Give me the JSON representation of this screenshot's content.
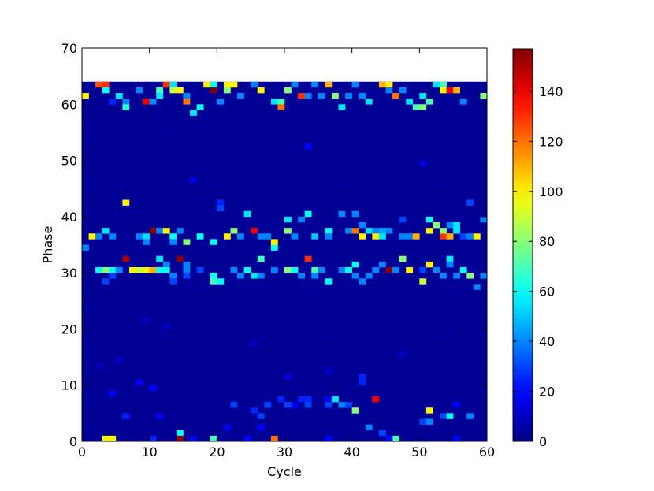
{
  "chart_data": {
    "type": "heatmap",
    "xlabel": "Cycle",
    "ylabel": "Phase",
    "xlim": [
      0,
      60
    ],
    "ylim": [
      0,
      70
    ],
    "grid": false,
    "x_bins": 60,
    "y_bins": 64,
    "colormap": "jet",
    "colorbar": {
      "min": 0,
      "max": 157,
      "ticks": [
        0,
        20,
        40,
        60,
        80,
        100,
        120,
        140
      ]
    },
    "xticks": [
      0,
      10,
      20,
      30,
      40,
      50,
      60
    ],
    "yticks": [
      0,
      10,
      20,
      30,
      40,
      50,
      60,
      70
    ],
    "background_value": 3,
    "cells": [
      [
        0,
        61,
        100
      ],
      [
        2,
        63,
        125
      ],
      [
        3,
        63,
        130
      ],
      [
        3,
        62,
        60
      ],
      [
        4,
        60,
        25
      ],
      [
        5,
        61,
        55
      ],
      [
        6,
        60,
        40
      ],
      [
        6,
        59,
        65
      ],
      [
        8,
        62,
        40
      ],
      [
        9,
        60,
        140
      ],
      [
        10,
        60,
        40
      ],
      [
        11,
        62,
        70
      ],
      [
        11,
        61,
        55
      ],
      [
        12,
        63,
        130
      ],
      [
        13,
        63,
        55
      ],
      [
        13,
        62,
        90
      ],
      [
        14,
        62,
        100
      ],
      [
        15,
        61,
        40
      ],
      [
        15,
        60,
        120
      ],
      [
        16,
        58,
        55
      ],
      [
        17,
        59,
        60
      ],
      [
        18,
        63,
        100
      ],
      [
        19,
        63,
        60
      ],
      [
        19,
        62,
        157
      ],
      [
        20,
        60,
        40
      ],
      [
        21,
        63,
        100
      ],
      [
        21,
        62,
        80
      ],
      [
        22,
        63,
        100
      ],
      [
        23,
        61,
        40
      ],
      [
        25,
        63,
        40
      ],
      [
        26,
        62,
        100
      ],
      [
        28,
        60,
        55
      ],
      [
        29,
        60,
        70
      ],
      [
        29,
        59,
        120
      ],
      [
        30,
        62,
        80
      ],
      [
        31,
        63,
        40
      ],
      [
        32,
        61,
        130
      ],
      [
        33,
        61,
        40
      ],
      [
        34,
        63,
        40
      ],
      [
        35,
        61,
        40
      ],
      [
        36,
        63,
        110
      ],
      [
        37,
        61,
        80
      ],
      [
        38,
        59,
        55
      ],
      [
        39,
        61,
        40
      ],
      [
        40,
        63,
        40
      ],
      [
        41,
        61,
        40
      ],
      [
        42,
        60,
        55
      ],
      [
        44,
        63,
        110
      ],
      [
        45,
        63,
        100
      ],
      [
        45,
        62,
        40
      ],
      [
        46,
        61,
        120
      ],
      [
        47,
        62,
        40
      ],
      [
        48,
        60,
        55
      ],
      [
        49,
        59,
        70
      ],
      [
        50,
        59,
        80
      ],
      [
        50,
        61,
        55
      ],
      [
        51,
        60,
        70
      ],
      [
        52,
        63,
        55
      ],
      [
        53,
        63,
        70
      ],
      [
        53,
        62,
        100
      ],
      [
        54,
        62,
        140
      ],
      [
        55,
        62,
        110
      ],
      [
        56,
        60,
        40
      ],
      [
        59,
        61,
        80
      ],
      [
        6,
        42,
        100
      ],
      [
        20,
        42,
        25
      ],
      [
        20,
        41,
        30
      ],
      [
        27,
        36,
        40
      ],
      [
        28,
        34,
        60
      ],
      [
        30,
        39,
        55
      ],
      [
        32,
        39,
        40
      ],
      [
        33,
        40,
        60
      ],
      [
        28,
        35,
        100
      ],
      [
        30,
        37,
        80
      ],
      [
        31,
        36,
        40
      ],
      [
        34,
        36,
        50
      ],
      [
        36,
        37,
        60
      ],
      [
        36,
        36,
        40
      ],
      [
        38,
        40,
        40
      ],
      [
        39,
        37,
        40
      ],
      [
        40,
        37,
        120
      ],
      [
        41,
        36,
        100
      ],
      [
        42,
        37,
        55
      ],
      [
        41,
        38,
        40
      ],
      [
        40,
        40,
        40
      ],
      [
        43,
        37,
        40
      ],
      [
        43,
        36,
        100
      ],
      [
        44,
        37,
        45
      ],
      [
        44,
        36,
        55
      ],
      [
        45,
        37,
        40
      ],
      [
        47,
        36,
        40
      ],
      [
        48,
        36,
        40
      ],
      [
        49,
        36,
        110
      ],
      [
        51,
        37,
        100
      ],
      [
        51,
        39,
        60
      ],
      [
        52,
        38,
        80
      ],
      [
        53,
        36,
        130
      ],
      [
        53,
        37,
        80
      ],
      [
        54,
        36,
        110
      ],
      [
        54,
        38,
        40
      ],
      [
        55,
        38,
        55
      ],
      [
        55,
        37,
        55
      ],
      [
        56,
        36,
        30
      ],
      [
        57,
        36,
        40
      ],
      [
        58,
        36,
        100
      ],
      [
        59,
        39,
        40
      ],
      [
        57,
        42,
        30
      ],
      [
        1,
        36,
        100
      ],
      [
        2,
        36,
        40
      ],
      [
        3,
        37,
        55
      ],
      [
        4,
        36,
        40
      ],
      [
        8,
        36,
        40
      ],
      [
        9,
        36,
        55
      ],
      [
        9,
        35,
        40
      ],
      [
        10,
        37,
        157
      ],
      [
        11,
        37,
        40
      ],
      [
        12,
        37,
        100
      ],
      [
        13,
        36,
        60
      ],
      [
        13,
        35,
        40
      ],
      [
        14,
        37,
        40
      ],
      [
        15,
        35,
        80
      ],
      [
        17,
        36,
        60
      ],
      [
        19,
        35,
        60
      ],
      [
        21,
        36,
        100
      ],
      [
        22,
        37,
        80
      ],
      [
        23,
        36,
        40
      ],
      [
        24,
        40,
        55
      ],
      [
        25,
        37,
        140
      ],
      [
        26,
        36,
        40
      ],
      [
        11,
        32,
        55
      ],
      [
        12,
        31,
        40
      ],
      [
        14,
        32,
        155
      ],
      [
        15,
        31,
        40
      ],
      [
        6,
        32,
        150
      ],
      [
        2,
        30,
        60
      ],
      [
        3,
        30,
        80
      ],
      [
        4,
        30,
        60
      ],
      [
        4,
        29,
        30
      ],
      [
        5,
        30,
        40
      ],
      [
        7,
        30,
        100
      ],
      [
        8,
        30,
        90
      ],
      [
        9,
        30,
        100
      ],
      [
        10,
        30,
        110
      ],
      [
        11,
        30,
        60
      ],
      [
        12,
        30,
        60
      ],
      [
        13,
        29,
        40
      ],
      [
        13,
        28,
        30
      ],
      [
        15,
        30,
        40
      ],
      [
        15,
        29,
        30
      ],
      [
        17,
        30,
        30
      ],
      [
        19,
        29,
        60
      ],
      [
        19,
        28,
        70
      ],
      [
        20,
        28,
        60
      ],
      [
        22,
        30,
        40
      ],
      [
        23,
        29,
        40
      ],
      [
        24,
        30,
        60
      ],
      [
        25,
        29,
        55
      ],
      [
        26,
        29,
        40
      ],
      [
        26,
        32,
        70
      ],
      [
        28,
        30,
        40
      ],
      [
        30,
        30,
        80
      ],
      [
        31,
        30,
        60
      ],
      [
        32,
        29,
        40
      ],
      [
        33,
        32,
        130
      ],
      [
        34,
        30,
        70
      ],
      [
        34,
        29,
        40
      ],
      [
        35,
        30,
        40
      ],
      [
        36,
        28,
        60
      ],
      [
        38,
        30,
        40
      ],
      [
        39,
        30,
        60
      ],
      [
        40,
        31,
        60
      ],
      [
        40,
        29,
        40
      ],
      [
        41,
        28,
        40
      ],
      [
        42,
        29,
        40
      ],
      [
        43,
        30,
        40
      ],
      [
        44,
        31,
        40
      ],
      [
        45,
        30,
        40
      ],
      [
        45,
        30,
        155
      ],
      [
        46,
        30,
        40
      ],
      [
        47,
        32,
        80
      ],
      [
        48,
        30,
        100
      ],
      [
        50,
        28,
        90
      ],
      [
        50,
        30,
        30
      ],
      [
        51,
        31,
        100
      ],
      [
        52,
        30,
        40
      ],
      [
        53,
        29,
        40
      ],
      [
        54,
        32,
        55
      ],
      [
        54,
        31,
        40
      ],
      [
        55,
        29,
        40
      ],
      [
        56,
        30,
        60
      ],
      [
        57,
        29,
        80
      ],
      [
        58,
        27,
        40
      ],
      [
        59,
        29,
        40
      ],
      [
        0,
        34,
        40
      ],
      [
        3,
        28,
        30
      ],
      [
        41,
        11,
        25
      ],
      [
        41,
        10,
        25
      ],
      [
        10,
        9,
        20
      ],
      [
        32,
        7,
        25
      ],
      [
        33,
        7,
        25
      ],
      [
        31,
        6,
        20
      ],
      [
        29,
        7,
        25
      ],
      [
        30,
        6,
        30
      ],
      [
        36,
        7,
        20
      ],
      [
        36,
        6,
        30
      ],
      [
        37,
        7,
        55
      ],
      [
        38,
        6,
        40
      ],
      [
        39,
        6,
        30
      ],
      [
        40,
        5,
        80
      ],
      [
        43,
        7,
        140
      ],
      [
        22,
        6,
        30
      ],
      [
        25,
        5,
        25
      ],
      [
        26,
        4,
        30
      ],
      [
        27,
        6,
        30
      ],
      [
        33,
        6,
        30
      ],
      [
        6,
        4,
        25
      ],
      [
        11,
        4,
        20
      ],
      [
        21,
        2,
        20
      ],
      [
        26,
        2,
        20
      ],
      [
        42,
        2,
        40
      ],
      [
        44,
        1,
        30
      ],
      [
        46,
        0,
        70
      ],
      [
        51,
        5,
        100
      ],
      [
        50,
        3,
        30
      ],
      [
        51,
        3,
        40
      ],
      [
        53,
        4,
        30
      ],
      [
        54,
        4,
        60
      ],
      [
        57,
        4,
        40
      ],
      [
        14,
        1,
        60
      ],
      [
        14,
        0,
        155
      ],
      [
        19,
        0,
        70
      ],
      [
        28,
        0,
        120
      ],
      [
        3,
        0,
        100
      ],
      [
        4,
        0,
        100
      ],
      [
        10,
        0,
        25
      ],
      [
        16,
        0,
        20
      ],
      [
        24,
        0,
        20
      ],
      [
        36,
        0,
        20
      ],
      [
        45,
        0,
        20
      ],
      [
        55,
        0,
        20
      ],
      [
        8,
        10,
        20
      ],
      [
        4,
        8,
        20
      ],
      [
        5,
        14,
        10
      ],
      [
        12,
        20,
        10
      ],
      [
        25,
        17,
        10
      ],
      [
        33,
        52,
        20
      ],
      [
        50,
        49,
        15
      ],
      [
        16,
        46,
        15
      ],
      [
        9,
        21,
        10
      ],
      [
        47,
        39,
        30
      ],
      [
        30,
        11,
        15
      ],
      [
        36,
        12,
        12
      ],
      [
        47,
        15,
        10
      ],
      [
        2,
        13,
        10
      ],
      [
        55,
        6,
        20
      ]
    ]
  }
}
